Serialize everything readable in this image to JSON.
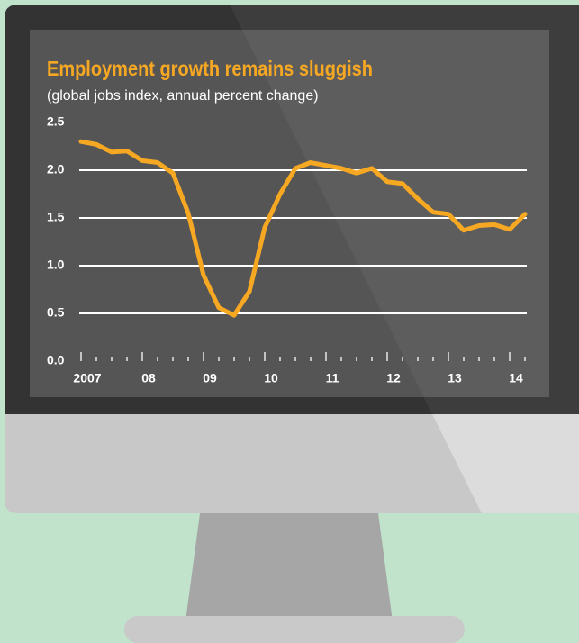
{
  "chart_data": {
    "type": "line",
    "title": "Employment growth remains sluggish",
    "subtitle": "(global jobs index, annual percent change)",
    "x": [
      2007,
      2007.25,
      2007.5,
      2007.75,
      2008,
      2008.25,
      2008.5,
      2008.75,
      2009,
      2009.25,
      2009.5,
      2009.75,
      2010,
      2010.25,
      2010.5,
      2010.75,
      2011,
      2011.25,
      2011.5,
      2011.75,
      2012,
      2012.25,
      2012.5,
      2012.75,
      2013,
      2013.25,
      2013.5,
      2013.75,
      2014,
      2014.25
    ],
    "series": [
      {
        "color": "#f7a823",
        "values": [
          2.3,
          2.27,
          2.19,
          2.2,
          2.1,
          2.08,
          1.97,
          1.55,
          0.9,
          0.56,
          0.48,
          0.73,
          1.4,
          1.75,
          2.02,
          2.08,
          2.05,
          2.02,
          1.97,
          2.02,
          1.88,
          1.86,
          1.7,
          1.56,
          1.54,
          1.37,
          1.42,
          1.43,
          1.38,
          1.54
        ]
      }
    ],
    "xlim": [
      2007,
      2014.25
    ],
    "xticks": [
      {
        "value": 2007,
        "label": "2007"
      },
      {
        "value": 2008,
        "label": "08"
      },
      {
        "value": 2009,
        "label": "09"
      },
      {
        "value": 2010,
        "label": "10"
      },
      {
        "value": 2011,
        "label": "11"
      },
      {
        "value": 2012,
        "label": "12"
      },
      {
        "value": 2013,
        "label": "13"
      },
      {
        "value": 2014,
        "label": "14"
      }
    ],
    "xminorticks": [
      2007.25,
      2007.5,
      2007.75,
      2008.25,
      2008.5,
      2008.75,
      2009.25,
      2009.5,
      2009.75,
      2010.25,
      2010.5,
      2010.75,
      2011.25,
      2011.5,
      2011.75,
      2012.25,
      2012.5,
      2012.75,
      2013.25,
      2013.5,
      2013.75,
      2014.25
    ],
    "ylim": [
      0,
      2.5
    ],
    "yticks": [
      {
        "value": 0,
        "label": "0.0"
      },
      0.5,
      {
        "value": 1,
        "label": "1.0"
      },
      1.5,
      {
        "value": 2,
        "label": "2.0"
      },
      2.5
    ],
    "grid": true
  }
}
